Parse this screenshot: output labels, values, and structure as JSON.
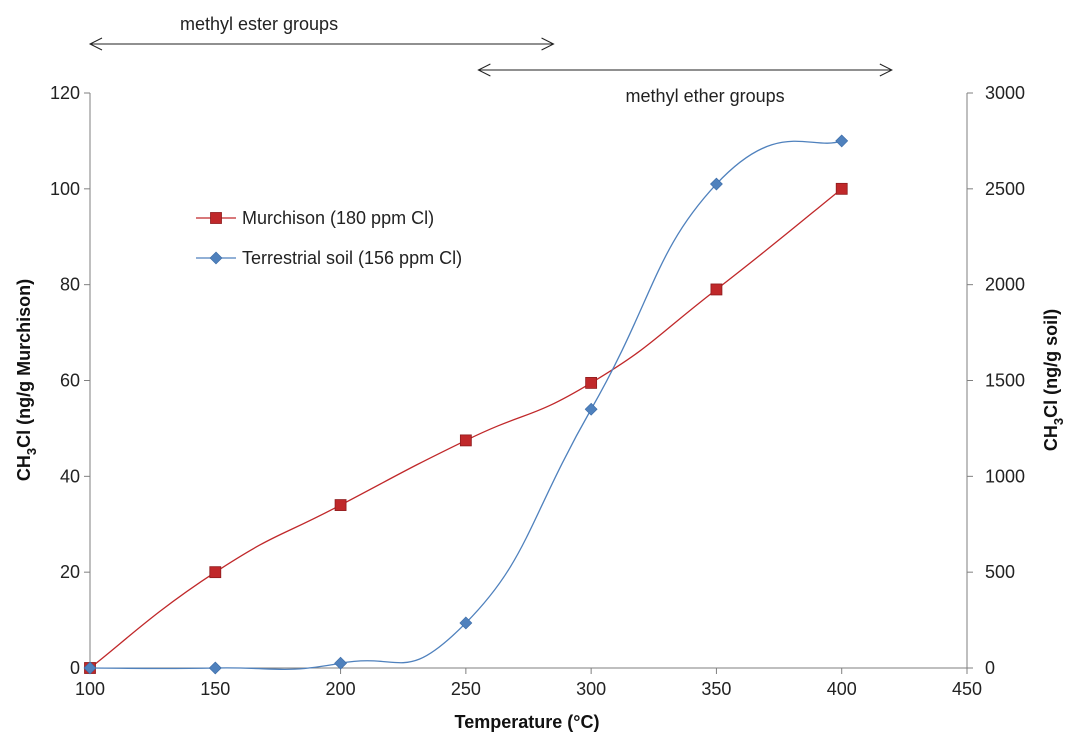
{
  "chart_data": {
    "type": "line",
    "xlabel": "Temperature (°C)",
    "ylabel_left": "CH3Cl (ng/g Murchison)",
    "ylabel_right": "CH3Cl (ng/g soil)",
    "ylabel_parts": {
      "prefix": "CH",
      "sub": "3",
      "suffix": "Cl"
    },
    "ylabel_left_unit": "(ng/g Murchison)",
    "ylabel_right_unit": "(ng/g soil)",
    "xlim": [
      100,
      450
    ],
    "ylim_left": [
      0,
      120
    ],
    "ylim_right": [
      0,
      3000
    ],
    "x_ticks": [
      100,
      150,
      200,
      250,
      300,
      350,
      400,
      450
    ],
    "y_ticks_left": [
      0,
      20,
      40,
      60,
      80,
      100,
      120
    ],
    "y_ticks_right": [
      0,
      500,
      1000,
      1500,
      2000,
      2500,
      3000
    ],
    "grid": false,
    "legend_position": "upper-left",
    "series": [
      {
        "name": "Murchison (180 ppm Cl)",
        "axis": "left",
        "marker": "square",
        "color": "#c0282a",
        "x": [
          100,
          150,
          200,
          250,
          300,
          350,
          400
        ],
        "y": [
          0,
          20,
          34,
          47.5,
          59.5,
          79,
          100
        ]
      },
      {
        "name": "Terrestrial soil (156 ppm Cl)",
        "axis": "right",
        "marker": "diamond",
        "color": "#4f81bd",
        "x": [
          100,
          150,
          200,
          250,
          300,
          350,
          400
        ],
        "y": [
          0,
          0,
          25,
          235,
          1350,
          2525,
          2750
        ]
      }
    ],
    "annotations": [
      {
        "text": "methyl ester groups",
        "x_start": 100,
        "x_end": 285
      },
      {
        "text": "methyl ether groups",
        "x_start": 255,
        "x_end": 420
      }
    ]
  }
}
